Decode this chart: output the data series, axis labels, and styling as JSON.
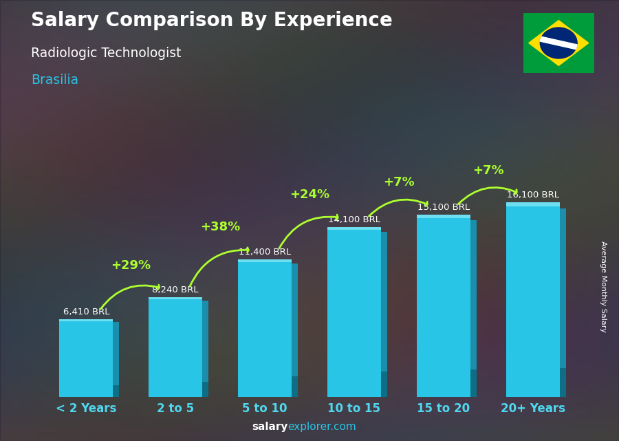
{
  "title": "Salary Comparison By Experience",
  "subtitle": "Radiologic Technologist",
  "city": "Brasilia",
  "ylabel": "Average Monthly Salary",
  "categories": [
    "< 2 Years",
    "2 to 5",
    "5 to 10",
    "10 to 15",
    "15 to 20",
    "20+ Years"
  ],
  "values": [
    6410,
    8240,
    11400,
    14100,
    15100,
    16100
  ],
  "bar_front_color": "#29C5E6",
  "bar_side_color": "#1A8EAA",
  "bar_top_color": "#6DDFF0",
  "value_labels": [
    "6,410 BRL",
    "8,240 BRL",
    "11,400 BRL",
    "14,100 BRL",
    "15,100 BRL",
    "16,100 BRL"
  ],
  "pct_labels": [
    "+29%",
    "+38%",
    "+24%",
    "+7%",
    "+7%"
  ],
  "title_color": "#FFFFFF",
  "subtitle_color": "#FFFFFF",
  "city_color": "#29C5E6",
  "value_label_color": "#FFFFFF",
  "pct_color": "#ADFF2F",
  "bg_color": "#4a5568",
  "footer_salary_color": "#FFFFFF",
  "footer_explorer_color": "#29C5E6",
  "ylim_max": 19000,
  "flag_green": "#009C3B",
  "flag_yellow": "#FFDF00",
  "flag_blue": "#002776"
}
